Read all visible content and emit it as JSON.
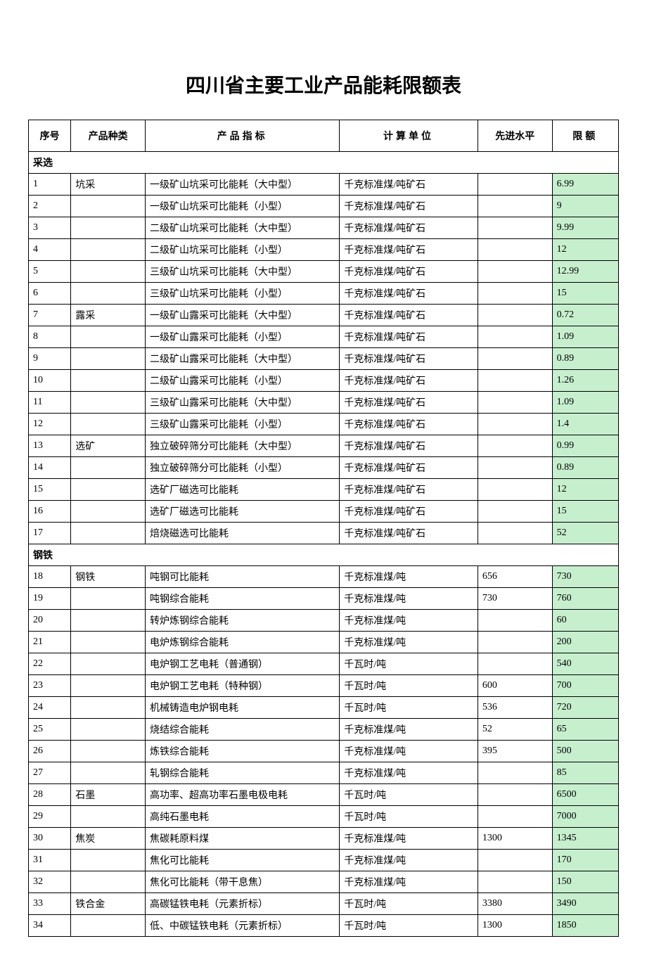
{
  "title": "四川省主要工业产品能耗限额表",
  "headers": {
    "seq": "序号",
    "category": "产品种类",
    "indicator": "产品指标",
    "unit": "计算单位",
    "advanced": "先进水平",
    "limit": "限额"
  },
  "colors": {
    "limit_bg": "#c6efce",
    "border": "#000000",
    "background": "#ffffff"
  },
  "sections": [
    {
      "name": "采选",
      "rows": [
        {
          "seq": "1",
          "category": "坑采",
          "indicator": "一级矿山坑采可比能耗（大中型）",
          "unit": "千克标准煤/吨矿石",
          "advanced": "",
          "limit": "6.99"
        },
        {
          "seq": "2",
          "category": "",
          "indicator": "一级矿山坑采可比能耗（小型）",
          "unit": "千克标准煤/吨矿石",
          "advanced": "",
          "limit": "9"
        },
        {
          "seq": "3",
          "category": "",
          "indicator": "二级矿山坑采可比能耗（大中型）",
          "unit": "千克标准煤/吨矿石",
          "advanced": "",
          "limit": "9.99"
        },
        {
          "seq": "4",
          "category": "",
          "indicator": "二级矿山坑采可比能耗（小型）",
          "unit": "千克标准煤/吨矿石",
          "advanced": "",
          "limit": "12"
        },
        {
          "seq": "5",
          "category": "",
          "indicator": "三级矿山坑采可比能耗（大中型）",
          "unit": "千克标准煤/吨矿石",
          "advanced": "",
          "limit": "12.99"
        },
        {
          "seq": "6",
          "category": "",
          "indicator": "三级矿山坑采可比能耗（小型）",
          "unit": "千克标准煤/吨矿石",
          "advanced": "",
          "limit": "15"
        },
        {
          "seq": "7",
          "category": "露采",
          "indicator": "一级矿山露采可比能耗（大中型）",
          "unit": "千克标准煤/吨矿石",
          "advanced": "",
          "limit": "0.72"
        },
        {
          "seq": "8",
          "category": "",
          "indicator": "一级矿山露采可比能耗（小型）",
          "unit": "千克标准煤/吨矿石",
          "advanced": "",
          "limit": "1.09"
        },
        {
          "seq": "9",
          "category": "",
          "indicator": "二级矿山露采可比能耗（大中型）",
          "unit": "千克标准煤/吨矿石",
          "advanced": "",
          "limit": "0.89"
        },
        {
          "seq": "10",
          "category": "",
          "indicator": "二级矿山露采可比能耗（小型）",
          "unit": "千克标准煤/吨矿石",
          "advanced": "",
          "limit": "1.26"
        },
        {
          "seq": "11",
          "category": "",
          "indicator": "三级矿山露采可比能耗（大中型）",
          "unit": "千克标准煤/吨矿石",
          "advanced": "",
          "limit": "1.09"
        },
        {
          "seq": "12",
          "category": "",
          "indicator": "三级矿山露采可比能耗（小型）",
          "unit": "千克标准煤/吨矿石",
          "advanced": "",
          "limit": "1.4"
        },
        {
          "seq": "13",
          "category": "选矿",
          "indicator": "独立破碎筛分可比能耗（大中型）",
          "unit": "千克标准煤/吨矿石",
          "advanced": "",
          "limit": "0.99"
        },
        {
          "seq": "14",
          "category": "",
          "indicator": "独立破碎筛分可比能耗（小型）",
          "unit": "千克标准煤/吨矿石",
          "advanced": "",
          "limit": "0.89"
        },
        {
          "seq": "15",
          "category": "",
          "indicator": "选矿厂磁选可比能耗",
          "unit": "千克标准煤/吨矿石",
          "advanced": "",
          "limit": "12"
        },
        {
          "seq": "16",
          "category": "",
          "indicator": "选矿厂磁选可比能耗",
          "unit": "千克标准煤/吨矿石",
          "advanced": "",
          "limit": "15"
        },
        {
          "seq": "17",
          "category": "",
          "indicator": "焙烧磁选可比能耗",
          "unit": "千克标准煤/吨矿石",
          "advanced": "",
          "limit": "52"
        }
      ]
    },
    {
      "name": "钢铁",
      "rows": [
        {
          "seq": "18",
          "category": "钢铁",
          "indicator": "吨钢可比能耗",
          "unit": "千克标准煤/吨",
          "advanced": "656",
          "limit": "730"
        },
        {
          "seq": "19",
          "category": "",
          "indicator": "吨钢综合能耗",
          "unit": "千克标准煤/吨",
          "advanced": "730",
          "limit": "760"
        },
        {
          "seq": "20",
          "category": "",
          "indicator": "转炉炼钢综合能耗",
          "unit": "千克标准煤/吨",
          "advanced": "",
          "limit": "60"
        },
        {
          "seq": "21",
          "category": "",
          "indicator": "电炉炼钢综合能耗",
          "unit": "千克标准煤/吨",
          "advanced": "",
          "limit": "200"
        },
        {
          "seq": "22",
          "category": "",
          "indicator": "电炉钢工艺电耗（普通钢）",
          "unit": "千瓦时/吨",
          "advanced": "",
          "limit": "540"
        },
        {
          "seq": "23",
          "category": "",
          "indicator": "电炉钢工艺电耗（特种钢）",
          "unit": "千瓦时/吨",
          "advanced": "600",
          "limit": "700"
        },
        {
          "seq": "24",
          "category": "",
          "indicator": "机械铸造电炉钢电耗",
          "unit": "千瓦时/吨",
          "advanced": "536",
          "limit": "720"
        },
        {
          "seq": "25",
          "category": "",
          "indicator": "烧结综合能耗",
          "unit": "千克标准煤/吨",
          "advanced": "52",
          "limit": "65"
        },
        {
          "seq": "26",
          "category": "",
          "indicator": "炼铁综合能耗",
          "unit": "千克标准煤/吨",
          "advanced": "395",
          "limit": "500"
        },
        {
          "seq": "27",
          "category": "",
          "indicator": "轧钢综合能耗",
          "unit": "千克标准煤/吨",
          "advanced": "",
          "limit": "85"
        },
        {
          "seq": "28",
          "category": "石墨",
          "indicator": "高功率、超高功率石墨电极电耗",
          "unit": "千瓦时/吨",
          "advanced": "",
          "limit": "6500"
        },
        {
          "seq": "29",
          "category": "",
          "indicator": "高纯石墨电耗",
          "unit": "千瓦时/吨",
          "advanced": "",
          "limit": "7000"
        },
        {
          "seq": "30",
          "category": "焦炭",
          "indicator": "焦碳耗原料煤",
          "unit": "千克标准煤/吨",
          "advanced": "1300",
          "limit": "1345"
        },
        {
          "seq": "31",
          "category": "",
          "indicator": "焦化可比能耗",
          "unit": "千克标准煤/吨",
          "advanced": "",
          "limit": "170"
        },
        {
          "seq": "32",
          "category": "",
          "indicator": "焦化可比能耗（带干息焦）",
          "unit": "千克标准煤/吨",
          "advanced": "",
          "limit": "150"
        },
        {
          "seq": "33",
          "category": "铁合金",
          "indicator": "高碳锰铁电耗（元素折标）",
          "unit": "千瓦时/吨",
          "advanced": "3380",
          "limit": "3490"
        },
        {
          "seq": "34",
          "category": "",
          "indicator": "低、中碳锰铁电耗（元素折标）",
          "unit": "千瓦时/吨",
          "advanced": "1300",
          "limit": "1850"
        }
      ]
    }
  ]
}
